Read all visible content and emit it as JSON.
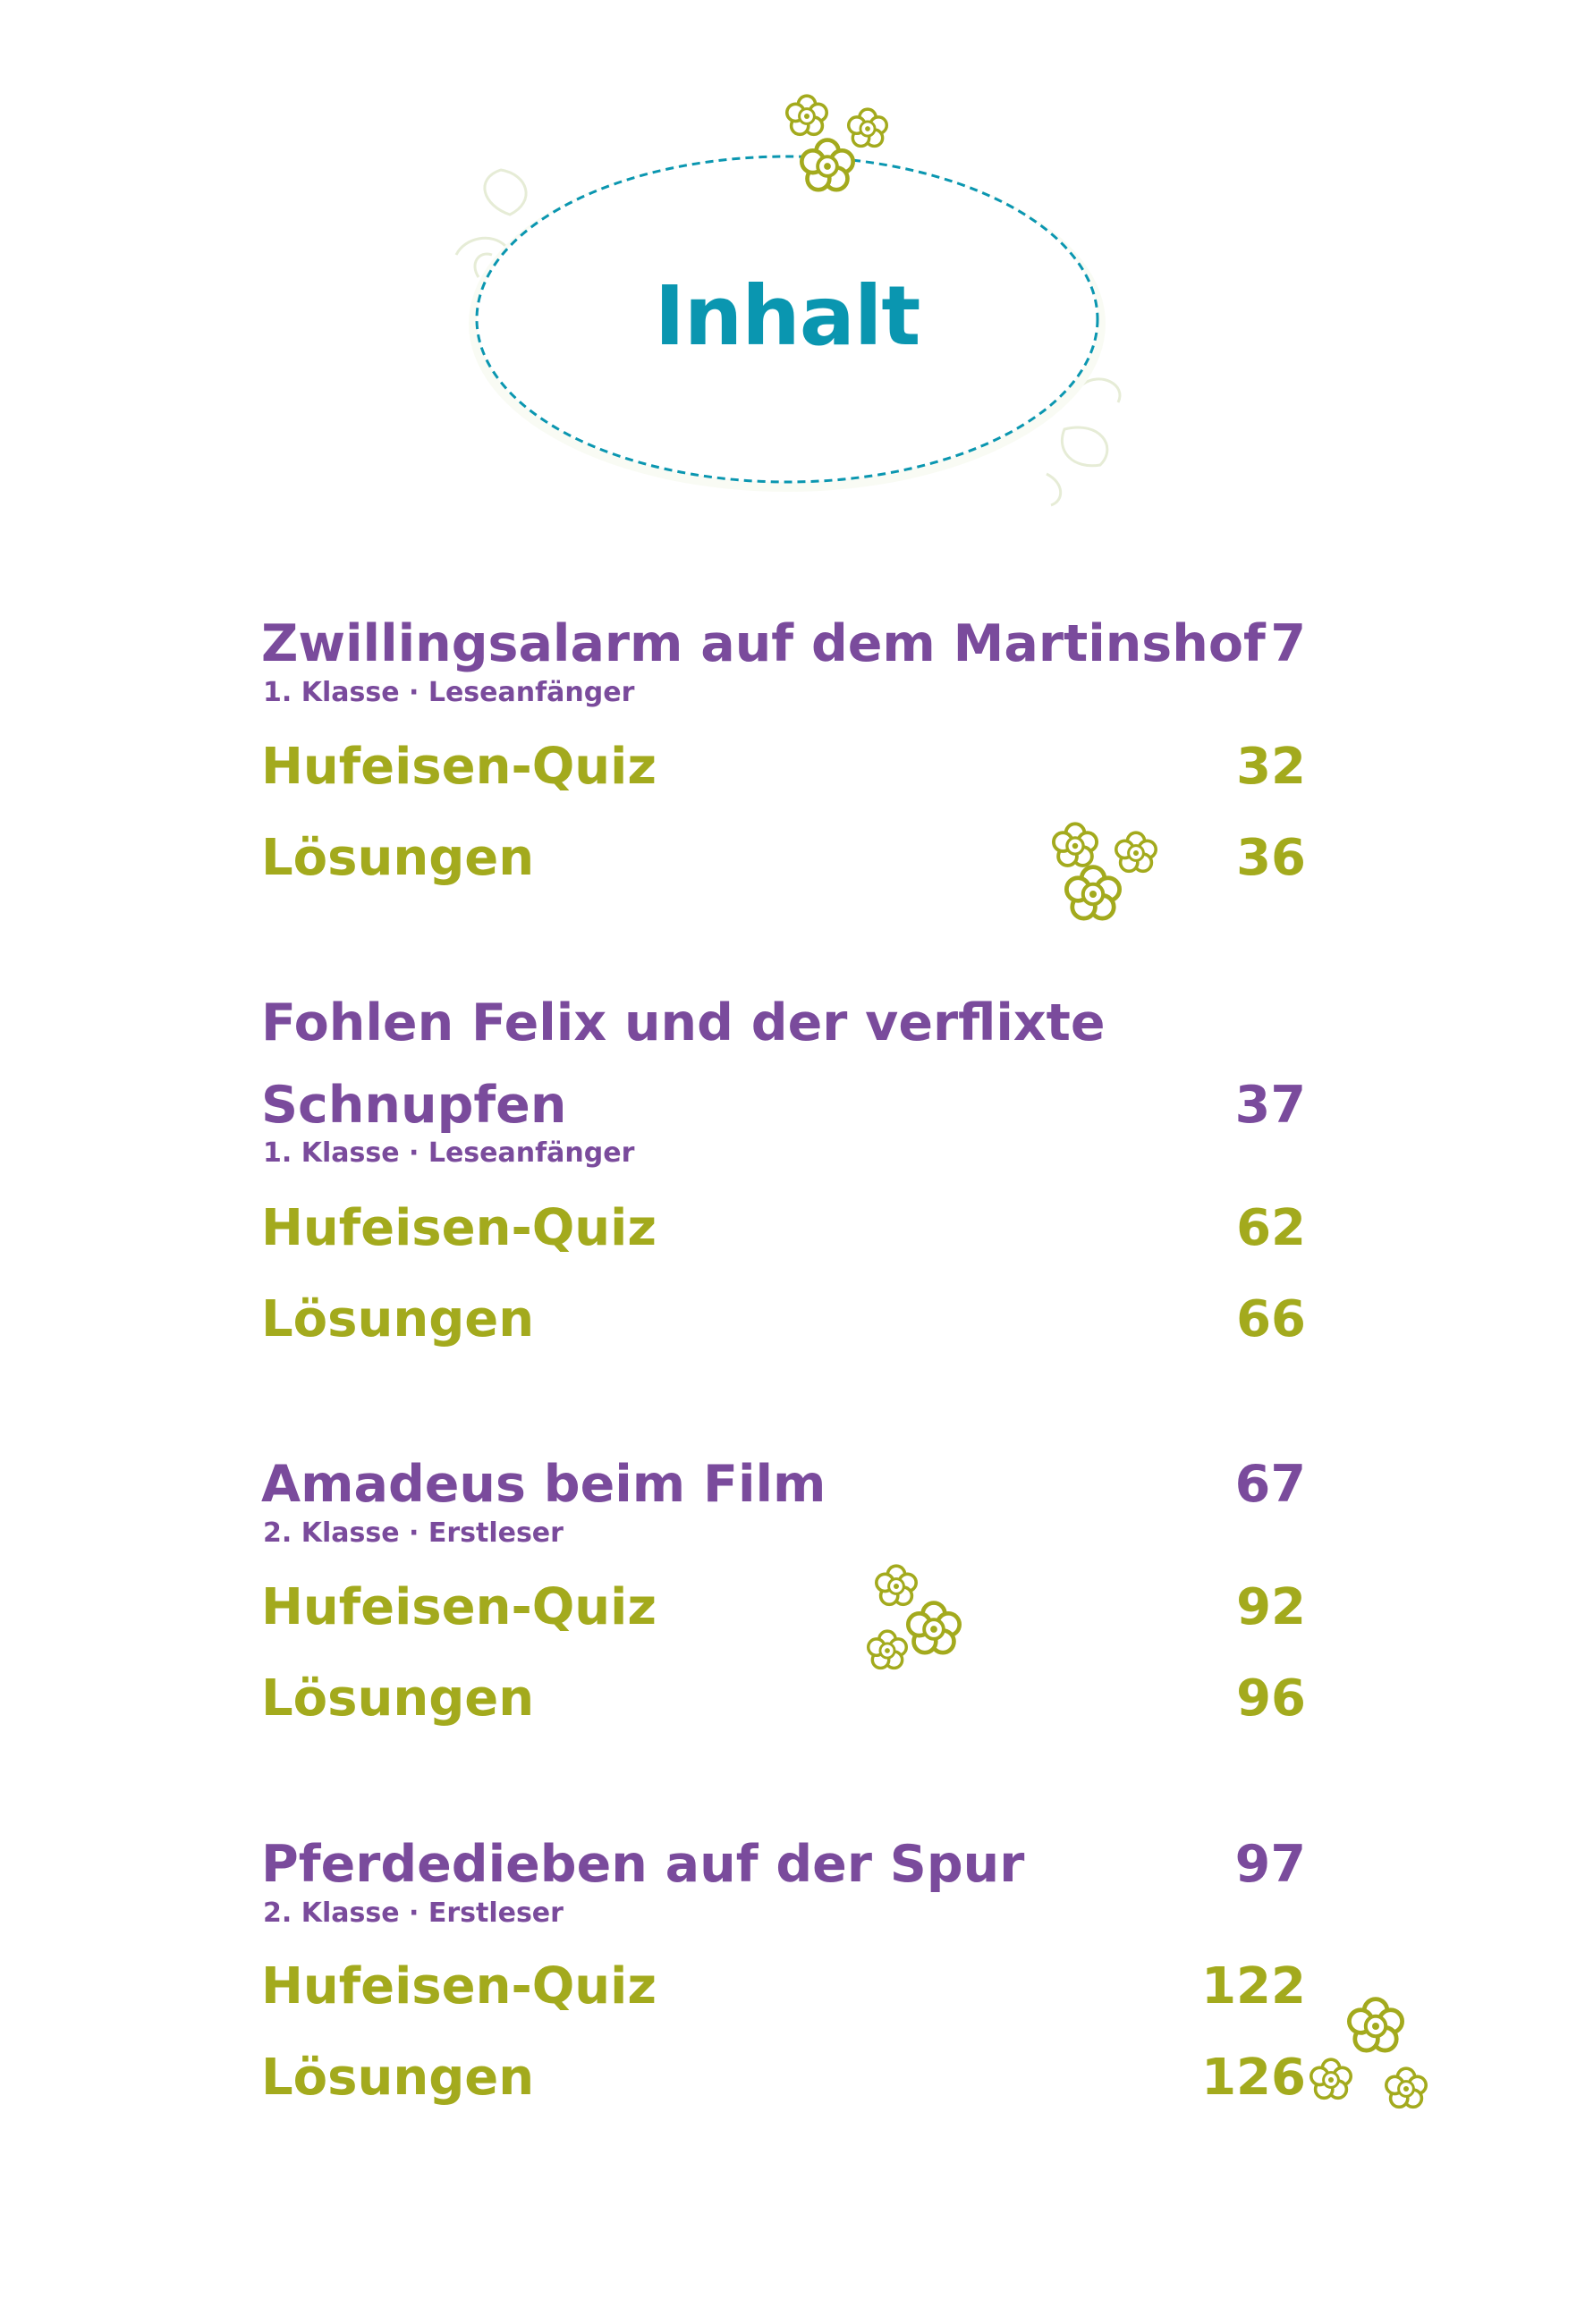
{
  "title": "Inhalt",
  "colors": {
    "story": "#7a4b9c",
    "sub": "#a3aa1d",
    "title": "#0a96b0",
    "flower": "#a3aa1d"
  },
  "sections": [
    {
      "title_lines": [
        "Zwillingsalarm auf dem Martinshof"
      ],
      "page": "7",
      "grade": "1. Klasse · Leseanfänger",
      "entries": [
        {
          "label": "Hufeisen-Quiz",
          "page": "32"
        },
        {
          "label": "Lösungen",
          "page": "36"
        }
      ]
    },
    {
      "title_lines": [
        "Fohlen Felix und der verflixte",
        "Schnupfen"
      ],
      "page": "37",
      "grade": "1. Klasse · Leseanfänger",
      "entries": [
        {
          "label": "Hufeisen-Quiz",
          "page": "62"
        },
        {
          "label": "Lösungen",
          "page": "66"
        }
      ]
    },
    {
      "title_lines": [
        "Amadeus beim Film"
      ],
      "page": "67",
      "grade": "2. Klasse · Erstleser",
      "entries": [
        {
          "label": "Hufeisen-Quiz",
          "page": "92"
        },
        {
          "label": "Lösungen",
          "page": "96"
        }
      ]
    },
    {
      "title_lines": [
        "Pferdedieben auf der Spur"
      ],
      "page": "97",
      "grade": "2. Klasse · Erstleser",
      "entries": [
        {
          "label": "Hufeisen-Quiz",
          "page": "122"
        },
        {
          "label": "Lösungen",
          "page": "126"
        }
      ]
    }
  ]
}
